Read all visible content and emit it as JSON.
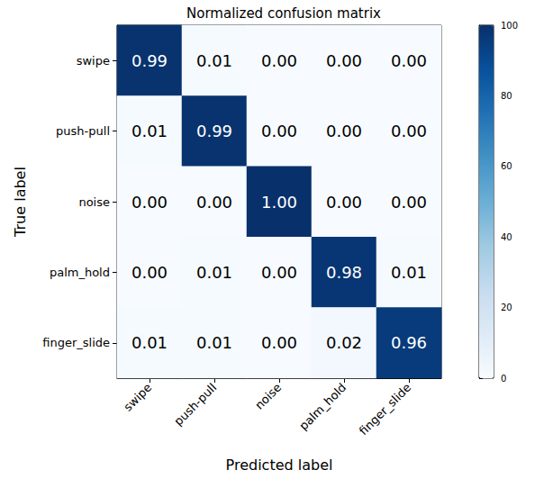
{
  "chart_data": {
    "type": "heatmap",
    "title": "Normalized confusion matrix",
    "x_label": "Predicted label",
    "y_label": "True label",
    "x_categories": [
      "swipe",
      "push-pull",
      "noise",
      "palm_hold",
      "finger_slide"
    ],
    "y_categories": [
      "swipe",
      "push-pull",
      "noise",
      "palm_hold",
      "finger_slide"
    ],
    "values": [
      [
        99,
        1,
        0,
        0,
        0
      ],
      [
        1,
        99,
        0,
        0,
        0
      ],
      [
        0,
        0,
        100,
        0,
        0
      ],
      [
        0,
        1,
        0,
        98,
        1
      ],
      [
        1,
        1,
        0,
        2,
        96
      ]
    ],
    "value_labels": [
      [
        "0.99",
        "0.01",
        "0.00",
        "0.00",
        "0.00"
      ],
      [
        "0.01",
        "0.99",
        "0.00",
        "0.00",
        "0.00"
      ],
      [
        "0.00",
        "0.00",
        "1.00",
        "0.00",
        "0.00"
      ],
      [
        "0.00",
        "0.01",
        "0.00",
        "0.98",
        "0.01"
      ],
      [
        "0.01",
        "0.01",
        "0.00",
        "0.02",
        "0.96"
      ]
    ],
    "data_labels": true,
    "color": "#08306b",
    "colorbar_range": [
      0,
      100
    ],
    "colorbar_ticks": [
      0,
      20,
      40,
      60,
      80,
      100
    ]
  }
}
